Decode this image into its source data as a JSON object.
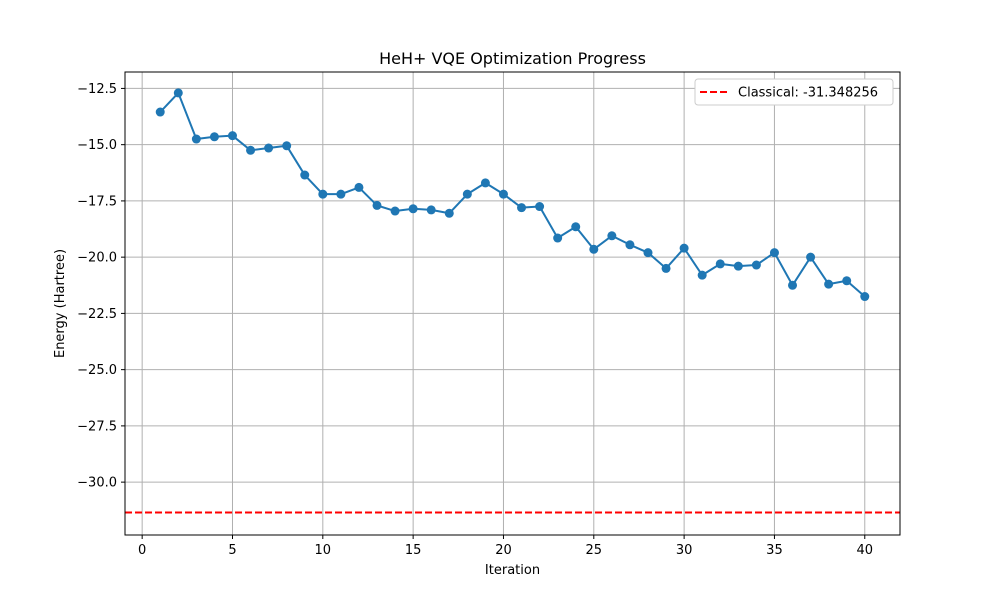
{
  "chart_data": {
    "type": "line",
    "title": "HeH+ VQE Optimization Progress",
    "xlabel": "Iteration",
    "ylabel": "Energy (Hartree)",
    "xlim": [
      -0.95,
      41.95
    ],
    "ylim": [
      -32.35,
      -11.77
    ],
    "xticks": [
      0,
      5,
      10,
      15,
      20,
      25,
      30,
      35,
      40
    ],
    "xtick_labels": [
      "0",
      "5",
      "10",
      "15",
      "20",
      "25",
      "30",
      "35",
      "40"
    ],
    "yticks": [
      -12.5,
      -15.0,
      -17.5,
      -20.0,
      -22.5,
      -25.0,
      -27.5,
      -30.0
    ],
    "ytick_labels": [
      "−12.5",
      "−15.0",
      "−17.5",
      "−20.0",
      "−22.5",
      "−25.0",
      "−27.5",
      "−30.0"
    ],
    "grid": true,
    "legend_position": "top-right",
    "series": [
      {
        "style": "line-with-markers",
        "color": "#1f77b4",
        "x": [
          1,
          2,
          3,
          4,
          5,
          6,
          7,
          8,
          9,
          10,
          11,
          12,
          13,
          14,
          15,
          16,
          17,
          18,
          19,
          20,
          21,
          22,
          23,
          24,
          25,
          26,
          27,
          28,
          29,
          30,
          31,
          32,
          33,
          34,
          35,
          36,
          37,
          38,
          39,
          40
        ],
        "y": [
          -13.55,
          -12.7,
          -14.75,
          -14.65,
          -14.6,
          -15.25,
          -15.15,
          -15.05,
          -16.35,
          -17.2,
          -17.2,
          -16.9,
          -17.7,
          -17.95,
          -17.85,
          -17.9,
          -18.05,
          -17.2,
          -16.7,
          -17.2,
          -17.8,
          -17.75,
          -19.15,
          -18.65,
          -19.65,
          -19.05,
          -19.45,
          -19.8,
          -20.5,
          -19.6,
          -20.8,
          -20.3,
          -20.4,
          -20.35,
          -19.8,
          -21.25,
          -20.0,
          -21.2,
          -21.05,
          -21.75
        ]
      },
      {
        "name": "Classical: -31.348256",
        "style": "horizontal-dashed-line",
        "color": "#ff0000",
        "y": -31.348256
      }
    ]
  }
}
